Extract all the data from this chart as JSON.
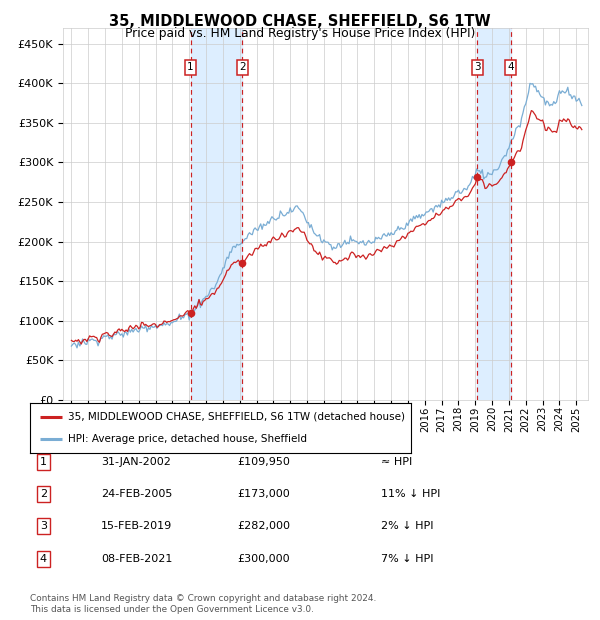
{
  "title": "35, MIDDLEWOOD CHASE, SHEFFIELD, S6 1TW",
  "subtitle": "Price paid vs. HM Land Registry's House Price Index (HPI)",
  "ytick_values": [
    0,
    50000,
    100000,
    150000,
    200000,
    250000,
    300000,
    350000,
    400000,
    450000
  ],
  "ylim": [
    0,
    470000
  ],
  "xlim_start": 1994.5,
  "xlim_end": 2025.7,
  "hpi_color": "#7aadd4",
  "price_color": "#cc2222",
  "shade_color": "#ddeeff",
  "purchases": [
    {
      "label": "1",
      "date": 2002.08,
      "price": 109950
    },
    {
      "label": "2",
      "date": 2005.15,
      "price": 173000
    },
    {
      "label": "3",
      "date": 2019.12,
      "price": 282000
    },
    {
      "label": "4",
      "date": 2021.1,
      "price": 300000
    }
  ],
  "shade_ranges": [
    [
      2002.08,
      2005.15
    ],
    [
      2019.12,
      2021.1
    ]
  ],
  "legend_entries": [
    "35, MIDDLEWOOD CHASE, SHEFFIELD, S6 1TW (detached house)",
    "HPI: Average price, detached house, Sheffield"
  ],
  "table_rows": [
    {
      "num": "1",
      "date": "31-JAN-2002",
      "price": "£109,950",
      "rel": "≈ HPI"
    },
    {
      "num": "2",
      "date": "24-FEB-2005",
      "price": "£173,000",
      "rel": "11% ↓ HPI"
    },
    {
      "num": "3",
      "date": "15-FEB-2019",
      "price": "£282,000",
      "rel": "2% ↓ HPI"
    },
    {
      "num": "4",
      "date": "08-FEB-2021",
      "price": "£300,000",
      "rel": "7% ↓ HPI"
    }
  ],
  "footer": "Contains HM Land Registry data © Crown copyright and database right 2024.\nThis data is licensed under the Open Government Licence v3.0.",
  "background_color": "#ffffff",
  "grid_color": "#cccccc"
}
